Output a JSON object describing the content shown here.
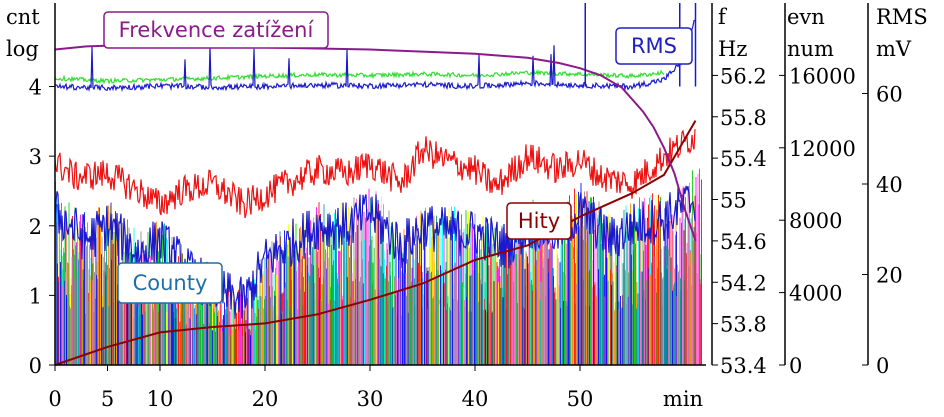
{
  "chart_data": {
    "type": "line",
    "title": "",
    "xlabel": "min",
    "x_ticks": [
      0,
      5,
      10,
      20,
      30,
      40,
      50
    ],
    "xlim": [
      0,
      62
    ],
    "axes": {
      "cnt": {
        "labels": [
          "cnt",
          "log"
        ],
        "ticks": [
          0,
          1,
          2,
          3,
          4
        ],
        "range": [
          0,
          5.2
        ]
      },
      "f": {
        "labels": [
          "f",
          "Hz"
        ],
        "ticks": [
          53.4,
          53.8,
          54.2,
          54.6,
          55,
          55.4,
          55.8,
          56.2
        ],
        "tick_labels": [
          "53.4",
          "53.8",
          "54.2",
          "54.6",
          "55",
          "55.4",
          "55.8",
          "56.2"
        ],
        "range": [
          53.4,
          56.9
        ]
      },
      "evn": {
        "labels": [
          "evn",
          "num"
        ],
        "ticks": [
          0,
          4000,
          8000,
          12000,
          16000
        ],
        "range": [
          0,
          20000
        ]
      },
      "rms": {
        "labels": [
          "RMS",
          "mV"
        ],
        "ticks": [
          0,
          20,
          40,
          60
        ],
        "range": [
          0,
          80
        ]
      }
    },
    "annotations": [
      {
        "text": "Frekvence zatížení",
        "color": "#8b1a8b"
      },
      {
        "text": "RMS",
        "color": "#2020c0"
      },
      {
        "text": "Hity",
        "color": "#8b0000"
      },
      {
        "text": "County",
        "color": "#1e6fa8"
      }
    ],
    "series": [
      {
        "name": "Frekvence zatížení",
        "axis": "f",
        "color": "#8b1a8b",
        "x": [
          0,
          3,
          6,
          10,
          15,
          20,
          25,
          30,
          35,
          40,
          45,
          48,
          50,
          52,
          54,
          56,
          57,
          58,
          59,
          60,
          61
        ],
        "y": [
          56.45,
          56.48,
          56.49,
          56.49,
          56.48,
          56.47,
          56.46,
          56.45,
          56.43,
          56.41,
          56.37,
          56.32,
          56.27,
          56.2,
          56.08,
          55.85,
          55.7,
          55.5,
          55.25,
          54.9,
          54.6
        ]
      },
      {
        "name": "Hity",
        "axis": "evn",
        "color": "#8b0000",
        "x": [
          0,
          5,
          10,
          15,
          20,
          25,
          30,
          35,
          40,
          45,
          50,
          55,
          58,
          61
        ],
        "y": [
          0,
          1000,
          1800,
          2100,
          2300,
          2800,
          3600,
          4500,
          5800,
          6600,
          8200,
          9500,
          10500,
          13500
        ]
      },
      {
        "name": "RMS",
        "axis": "cnt",
        "color": "#1a1acc",
        "x": [
          0,
          5,
          10,
          15,
          20,
          25,
          30,
          35,
          40,
          45,
          50,
          55,
          58,
          60,
          61
        ],
        "y": [
          4.0,
          3.98,
          4.01,
          3.99,
          4.0,
          4.02,
          4.01,
          4.03,
          4.0,
          4.05,
          4.02,
          4.0,
          4.1,
          4.4,
          5.0
        ]
      },
      {
        "name": "green",
        "axis": "cnt",
        "color": "#33dd33",
        "x": [
          0,
          5,
          10,
          15,
          20,
          25,
          30,
          35,
          40,
          45,
          50,
          55,
          58
        ],
        "y": [
          4.12,
          4.08,
          4.1,
          4.12,
          4.15,
          4.17,
          4.16,
          4.18,
          4.16,
          4.2,
          4.18,
          4.15,
          4.2
        ]
      },
      {
        "name": "red",
        "axis": "cnt",
        "color": "#ee1111",
        "x": [
          0,
          2,
          5,
          8,
          10,
          12,
          15,
          18,
          20,
          22,
          25,
          28,
          30,
          33,
          35,
          37,
          40,
          42,
          45,
          48,
          50,
          52,
          55,
          58,
          61
        ],
        "y": [
          2.9,
          2.7,
          2.75,
          2.5,
          2.3,
          2.5,
          2.6,
          2.3,
          2.45,
          2.6,
          2.8,
          2.75,
          2.9,
          2.6,
          3.1,
          2.95,
          2.8,
          2.55,
          3.0,
          2.8,
          2.95,
          2.7,
          2.6,
          3.0,
          3.3
        ]
      },
      {
        "name": "blue",
        "axis": "cnt",
        "color": "#1a1acc",
        "x": [
          0,
          3,
          5,
          8,
          10,
          13,
          15,
          18,
          20,
          23,
          25,
          28,
          30,
          33,
          35,
          38,
          40,
          43,
          45,
          48,
          50,
          53,
          55,
          58,
          61
        ],
        "y": [
          2.2,
          1.8,
          2.0,
          1.6,
          1.8,
          1.3,
          1.1,
          0.9,
          1.5,
          1.8,
          2.0,
          2.0,
          2.2,
          1.7,
          2.0,
          1.9,
          1.9,
          1.7,
          2.0,
          1.9,
          2.2,
          1.8,
          2.0,
          2.1,
          2.4
        ]
      }
    ]
  }
}
